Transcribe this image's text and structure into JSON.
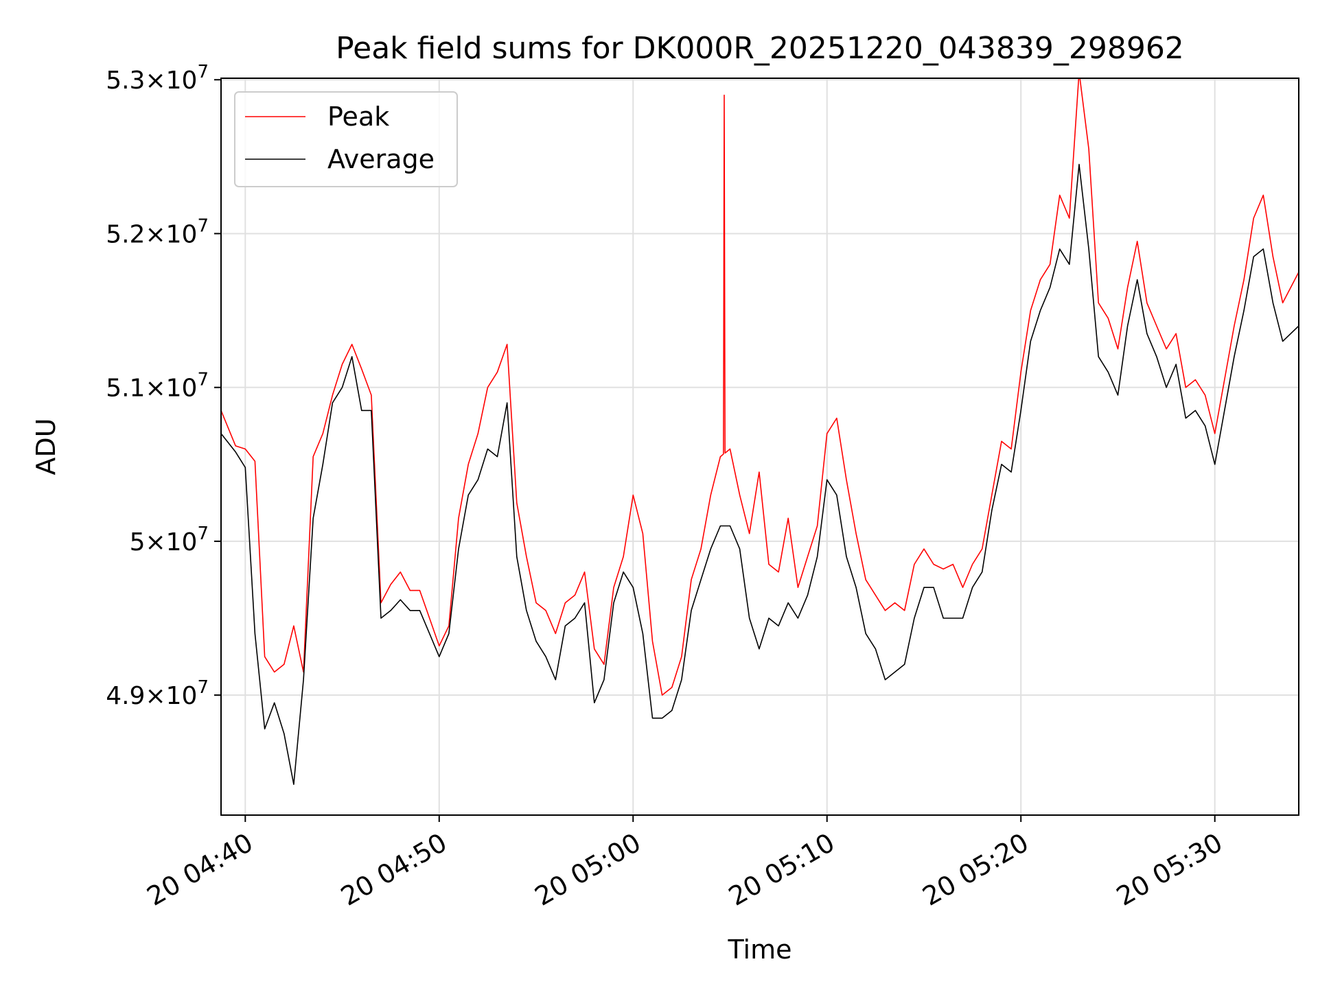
{
  "chart_data": {
    "type": "line",
    "title": "Peak field sums for DK000R_20251220_043839_298962",
    "xlabel": "Time",
    "ylabel": "ADU",
    "xlim_minutes": [
      278.75,
      334.33
    ],
    "ylim": [
      48220000,
      53010000
    ],
    "grid": true,
    "legend_position": "top-left",
    "x_ticks": [
      {
        "value": 280,
        "label": "20 04:40"
      },
      {
        "value": 290,
        "label": "20 04:50"
      },
      {
        "value": 300,
        "label": "20 05:00"
      },
      {
        "value": 310,
        "label": "20 05:10"
      },
      {
        "value": 320,
        "label": "20 05:20"
      },
      {
        "value": 330,
        "label": "20 05:30"
      }
    ],
    "y_ticks": [
      {
        "value": 49000000,
        "mantissa": "4.9",
        "exponent": "7"
      },
      {
        "value": 50000000,
        "mantissa": "5",
        "exponent": "7"
      },
      {
        "value": 51000000,
        "mantissa": "5.1",
        "exponent": "7"
      },
      {
        "value": 52000000,
        "mantissa": "5.2",
        "exponent": "7"
      },
      {
        "value": 53000000,
        "mantissa": "5.3",
        "exponent": "7"
      }
    ],
    "x_minutes": [
      278.75,
      279.5,
      280.0,
      280.5,
      281.0,
      281.5,
      282.0,
      282.5,
      283.0,
      283.5,
      284.0,
      284.5,
      285.0,
      285.5,
      286.0,
      286.5,
      287.0,
      287.5,
      288.0,
      288.5,
      289.0,
      289.5,
      290.0,
      290.5,
      291.0,
      291.5,
      292.0,
      292.5,
      293.0,
      293.5,
      294.0,
      294.5,
      295.0,
      295.5,
      296.0,
      296.5,
      297.0,
      297.5,
      298.0,
      298.5,
      299.0,
      299.5,
      300.0,
      300.5,
      301.0,
      301.5,
      302.0,
      302.5,
      303.0,
      303.5,
      304.0,
      304.5,
      305.0,
      305.5,
      306.0,
      306.5,
      307.0,
      307.5,
      308.0,
      308.5,
      309.0,
      309.5,
      310.0,
      310.5,
      311.0,
      311.5,
      312.0,
      312.5,
      313.0,
      313.5,
      314.0,
      314.5,
      315.0,
      315.5,
      316.0,
      316.5,
      317.0,
      317.5,
      318.0,
      318.5,
      319.0,
      319.5,
      320.0,
      320.5,
      321.0,
      321.5,
      322.0,
      322.5,
      323.0,
      323.5,
      324.0,
      324.5,
      325.0,
      325.5,
      326.0,
      326.5,
      327.0,
      327.5,
      328.0,
      328.5,
      329.0,
      329.5,
      330.0,
      330.5,
      331.0,
      331.5,
      332.0,
      332.5,
      333.0,
      333.5,
      334.33
    ],
    "series": [
      {
        "name": "Peak",
        "color": "#ff0000",
        "values": [
          50850000,
          50620000,
          50600000,
          50520000,
          49250000,
          49150000,
          49200000,
          49450000,
          49150000,
          50550000,
          50700000,
          50950000,
          51150000,
          51280000,
          51120000,
          50950000,
          49600000,
          49720000,
          49800000,
          49680000,
          49680000,
          49500000,
          49320000,
          49450000,
          50150000,
          50500000,
          50700000,
          51000000,
          51100000,
          51280000,
          50250000,
          49900000,
          49600000,
          49550000,
          49400000,
          49600000,
          49650000,
          49800000,
          49300000,
          49200000,
          49700000,
          49900000,
          50300000,
          50050000,
          49350000,
          49000000,
          49050000,
          49250000,
          49750000,
          49950000,
          50300000,
          50550000,
          50600000,
          50300000,
          50050000,
          50450000,
          49850000,
          49800000,
          50150000,
          49700000,
          49900000,
          50100000,
          50700000,
          50800000,
          50400000,
          50050000,
          49750000,
          49650000,
          49550000,
          49600000,
          49550000,
          49850000,
          49950000,
          49850000,
          49820000,
          49850000,
          49700000,
          49850000,
          49950000,
          50300000,
          50650000,
          50600000,
          51100000,
          51500000,
          51700000,
          51800000,
          52250000,
          52100000,
          53050000,
          52550000,
          51550000,
          51450000,
          51250000,
          51650000,
          51950000,
          51550000,
          51400000,
          51250000,
          51350000,
          51000000,
          51050000,
          50950000,
          50700000,
          51050000,
          51400000,
          51700000,
          52100000,
          52250000,
          51850000,
          51550000,
          51750000
        ],
        "spike": {
          "x": 304.7,
          "value": 52900000
        }
      },
      {
        "name": "Average",
        "color": "#000000",
        "values": [
          50700000,
          50580000,
          50480000,
          49400000,
          48780000,
          48950000,
          48750000,
          48420000,
          49100000,
          50150000,
          50500000,
          50900000,
          51000000,
          51200000,
          50850000,
          50850000,
          49500000,
          49550000,
          49620000,
          49550000,
          49550000,
          49400000,
          49250000,
          49400000,
          49950000,
          50300000,
          50400000,
          50600000,
          50550000,
          50900000,
          49900000,
          49550000,
          49350000,
          49250000,
          49100000,
          49450000,
          49500000,
          49600000,
          48950000,
          49100000,
          49600000,
          49800000,
          49700000,
          49400000,
          48850000,
          48850000,
          48900000,
          49100000,
          49550000,
          49750000,
          49950000,
          50100000,
          50100000,
          49950000,
          49500000,
          49300000,
          49500000,
          49450000,
          49600000,
          49500000,
          49650000,
          49900000,
          50400000,
          50300000,
          49900000,
          49700000,
          49400000,
          49300000,
          49100000,
          49150000,
          49200000,
          49500000,
          49700000,
          49700000,
          49500000,
          49500000,
          49500000,
          49700000,
          49800000,
          50200000,
          50500000,
          50450000,
          50850000,
          51300000,
          51500000,
          51650000,
          51900000,
          51800000,
          52450000,
          51900000,
          51200000,
          51100000,
          50950000,
          51400000,
          51700000,
          51350000,
          51200000,
          51000000,
          51150000,
          50800000,
          50850000,
          50750000,
          50500000,
          50850000,
          51200000,
          51500000,
          51850000,
          51900000,
          51550000,
          51300000,
          51400000
        ]
      }
    ]
  }
}
